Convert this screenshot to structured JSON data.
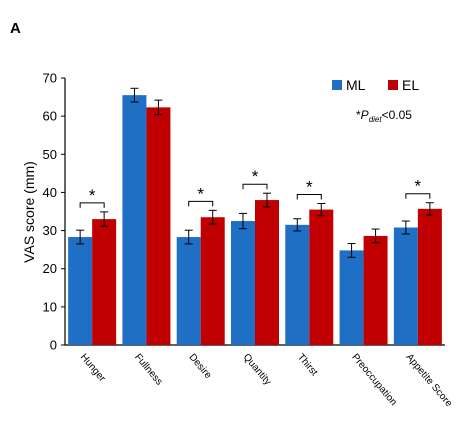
{
  "panel_label": "A",
  "note": {
    "prefix": "*",
    "p": "P",
    "sub": "diet",
    "suffix": "<0.05"
  },
  "colors": {
    "ML": "#1f6fc5",
    "EL": "#c00000",
    "axis": "#000000",
    "error": "#000000"
  },
  "chart_data": {
    "type": "bar",
    "title": "",
    "xlabel": "",
    "ylabel": "VAS score (mm)",
    "ylim": [
      0,
      70
    ],
    "yticks": [
      0,
      10,
      20,
      30,
      40,
      50,
      60,
      70
    ],
    "grid": false,
    "legend_position": "top-right",
    "categories": [
      "Hunger",
      "Fullness",
      "Desire",
      "Quantity",
      "Thirst",
      "Preoccupation",
      "Appetite Score"
    ],
    "series": [
      {
        "name": "ML",
        "values": [
          28.3,
          65.5,
          28.3,
          32.5,
          31.5,
          24.8,
          30.8
        ],
        "errors": [
          1.8,
          1.8,
          1.8,
          2.0,
          1.6,
          1.8,
          1.7
        ]
      },
      {
        "name": "EL",
        "values": [
          33.0,
          62.3,
          33.5,
          38.0,
          35.5,
          28.6,
          35.7
        ],
        "errors": [
          1.9,
          1.9,
          1.8,
          1.8,
          1.6,
          1.8,
          1.6
        ]
      }
    ],
    "significance": {
      "marker": "*",
      "categories": [
        "Hunger",
        "Desire",
        "Quantity",
        "Thirst",
        "Appetite Score"
      ]
    }
  }
}
